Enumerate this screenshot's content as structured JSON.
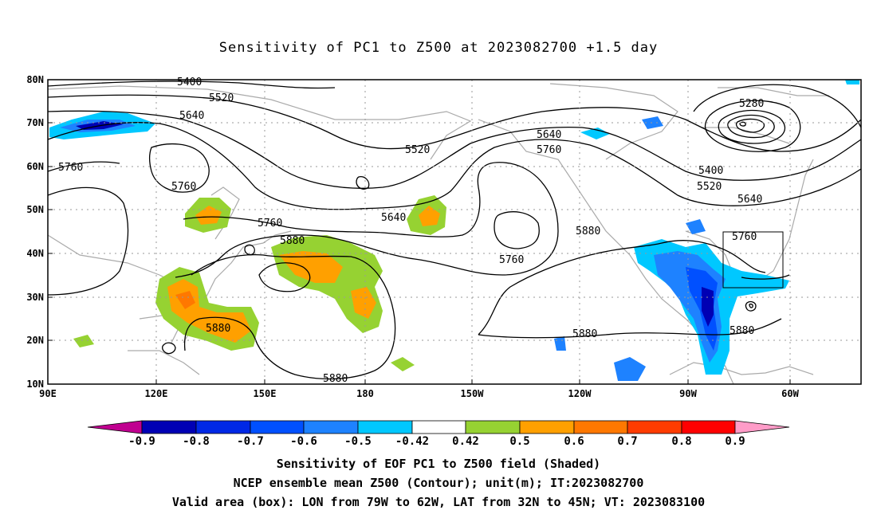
{
  "title": "Sensitivity of PC1 to Z500 at 2023082700 +1.5 day",
  "lat_labels": [
    "80N",
    "70N",
    "60N",
    "50N",
    "40N",
    "30N",
    "20N",
    "10N"
  ],
  "lon_labels": [
    "90E",
    "120E",
    "150E",
    "180",
    "150W",
    "120W",
    "90W",
    "60W"
  ],
  "contour_labels": {
    "c5400a": "5400",
    "c5520a": "5520",
    "c5640a": "5640",
    "c5760a": "5760",
    "c5760b": "5760",
    "c5520b": "5520",
    "c5640b": "5640",
    "c5760c": "5760",
    "c5640c": "5640",
    "c5880a": "5880",
    "c5760d": "5760",
    "c5880b": "5880",
    "c5880c": "5880",
    "c5880d": "5880",
    "c5280": "5280",
    "c5400b": "5400",
    "c5520c": "5520",
    "c5640d": "5640",
    "c5760e": "5760",
    "c5880e": "5880",
    "c5880f": "5880"
  },
  "colorbar": {
    "labels": [
      "-0.9",
      "-0.8",
      "-0.7",
      "-0.6",
      "-0.5",
      "-0.42",
      "0.42",
      "0.5",
      "0.6",
      "0.7",
      "0.8",
      "0.9"
    ],
    "colors": [
      "#c00090",
      "#0000b4",
      "#0028e6",
      "#0050ff",
      "#1e82ff",
      "#00c8ff",
      "#ffffff",
      "#96d232",
      "#ffa000",
      "#ff7800",
      "#ff3c00",
      "#ff0000",
      "#ff9cc8"
    ]
  },
  "captions": {
    "line1": "Sensitivity of EOF PC1 to Z500 field (Shaded)",
    "line2": "NCEP ensemble mean Z500 (Contour); unit(m); IT:2023082700",
    "line3": "Valid area (box): LON from 79W to 62W, LAT from 32N to 45N; VT: 2023083100"
  }
}
